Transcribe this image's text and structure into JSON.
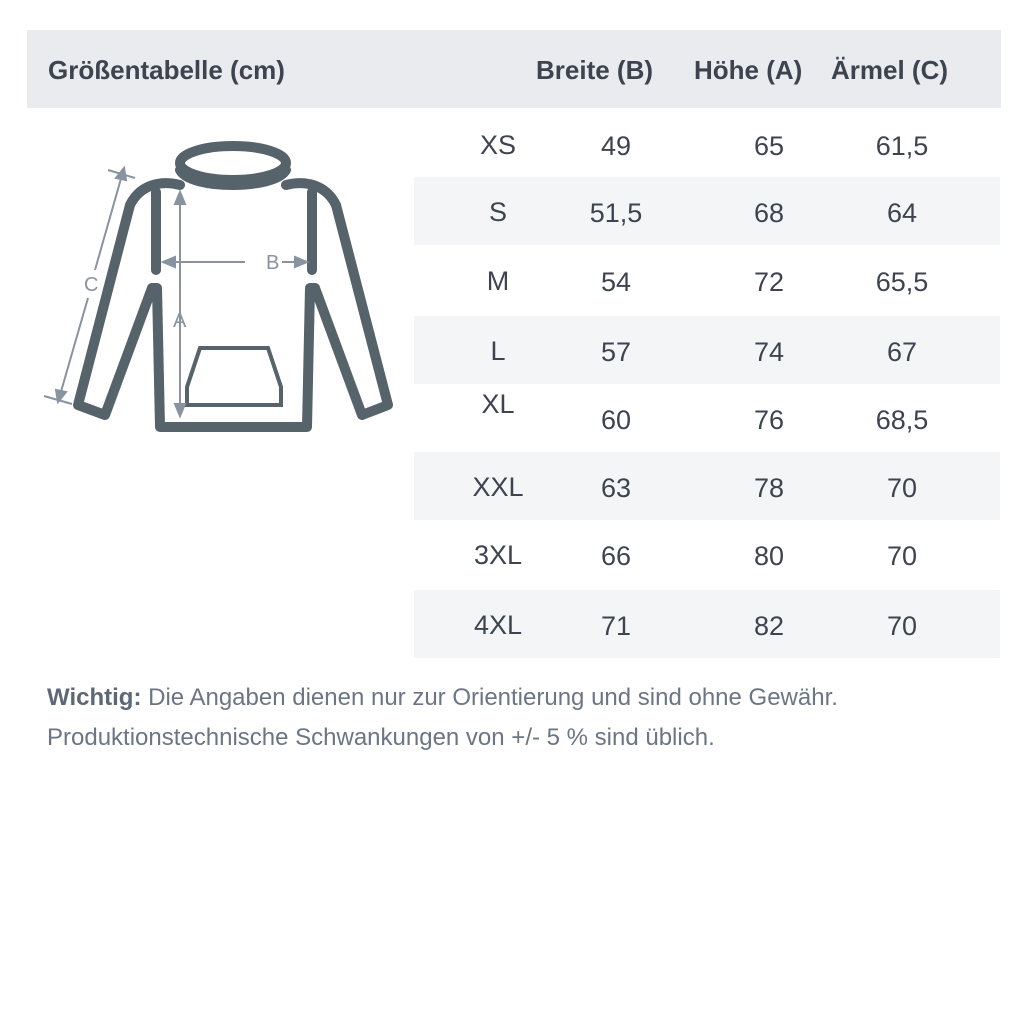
{
  "header": {
    "title": "Größentabelle (cm)",
    "columns": [
      "Breite (B)",
      "Höhe (A)",
      "Ärmel (C)"
    ]
  },
  "diagram": {
    "labels": {
      "width": "B",
      "height": "A",
      "sleeve": "C"
    },
    "color": "#56636b"
  },
  "rows": [
    {
      "size": "XS",
      "b": "49",
      "a": "65",
      "c": "61,5"
    },
    {
      "size": "S",
      "b": "51,5",
      "a": "68",
      "c": "64"
    },
    {
      "size": "M",
      "b": "54",
      "a": "72",
      "c": "65,5"
    },
    {
      "size": "L",
      "b": "57",
      "a": "74",
      "c": "67"
    },
    {
      "size": "XL",
      "b": "60",
      "a": "76",
      "c": "68,5"
    },
    {
      "size": "XXL",
      "b": "63",
      "a": "78",
      "c": "70"
    },
    {
      "size": "3XL",
      "b": "66",
      "a": "80",
      "c": "70"
    },
    {
      "size": "4XL",
      "b": "71",
      "a": "82",
      "c": "70"
    }
  ],
  "note": {
    "label": "Wichtig:",
    "line1": "Die Angaben dienen nur zur Orientierung und sind ohne Gewähr.",
    "line2": "Produktionstechnische Schwankungen von +/- 5 % sind üblich."
  }
}
